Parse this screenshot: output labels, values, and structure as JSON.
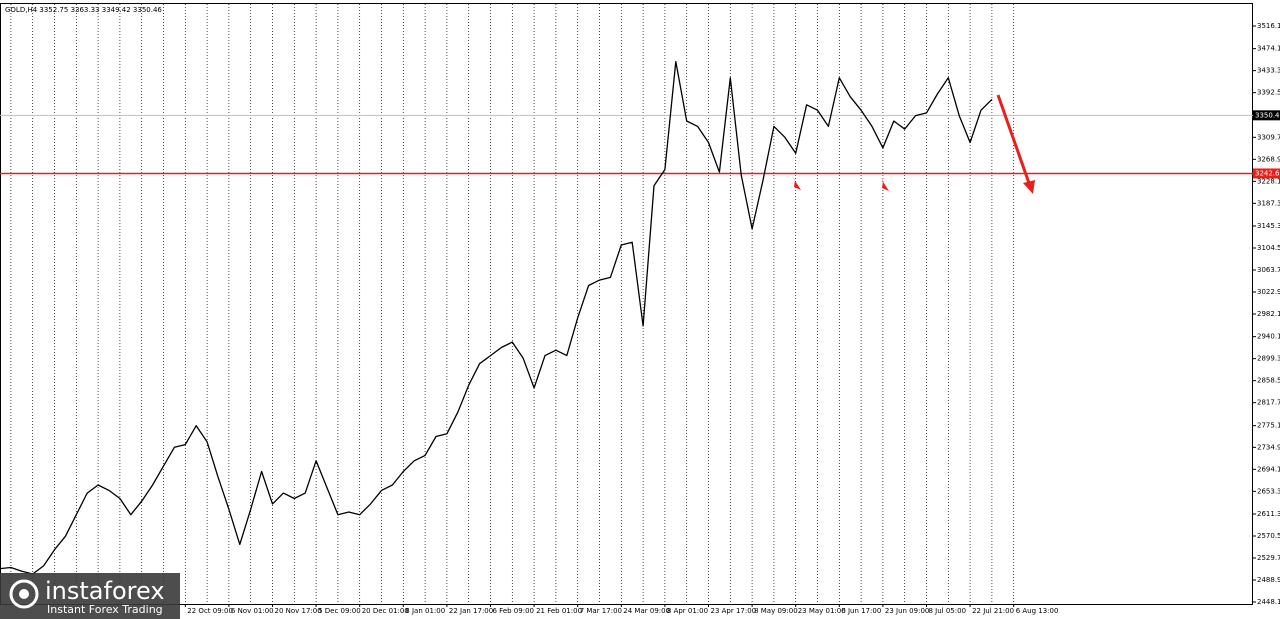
{
  "chart_data": {
    "type": "line",
    "title": "GOLD,H4  3352.75 3363.33 3349.42 3350.46",
    "categories": [
      null,
      null,
      null,
      null,
      null,
      null,
      null,
      null,
      null,
      null,
      null,
      null,
      null,
      null,
      null,
      null,
      null,
      "22 Oct 09:00",
      null,
      null,
      null,
      "6 Nov 01:00",
      null,
      null,
      null,
      "20 Nov 17:00",
      null,
      null,
      null,
      "5 Dec 09:00",
      null,
      null,
      null,
      "20 Dec 01:00",
      null,
      null,
      null,
      "8 Jan 01:00",
      null,
      null,
      null,
      "22 Jan 17:00",
      null,
      null,
      null,
      "6 Feb 09:00",
      null,
      null,
      null,
      "21 Feb 01:00",
      null,
      null,
      null,
      "7 Mar 17:00",
      null,
      null,
      null,
      "24 Mar 09:00",
      null,
      null,
      null,
      "8 Apr 01:00",
      null,
      null,
      null,
      "23 Apr 17:00",
      null,
      null,
      null,
      "8 May 09:00",
      null,
      null,
      null,
      "23 May 01:00",
      null,
      null,
      null,
      "6 Jun 17:00",
      null,
      null,
      null,
      "23 Jun 09:00",
      null,
      null,
      null,
      "8 Jul 05:00",
      null,
      null,
      null,
      "22 Jul 21:00",
      null,
      null,
      null,
      "6 Aug 13:00"
    ],
    "series": [
      {
        "name": "GOLD",
        "color": "#000000",
        "values": [
          2510,
          2512,
          2505,
          2500,
          2515,
          2545,
          2570,
          2610,
          2650,
          2665,
          2655,
          2640,
          2610,
          2635,
          2665,
          2700,
          2735,
          2740,
          2775,
          2745,
          2680,
          2620,
          2555,
          2620,
          2690,
          2630,
          2650,
          2640,
          2650,
          2710,
          2660,
          2610,
          2615,
          2610,
          2630,
          2655,
          2665,
          2690,
          2710,
          2720,
          2755,
          2760,
          2800,
          2850,
          2890,
          2905,
          2920,
          2930,
          2900,
          2845,
          2905,
          2915,
          2905,
          2975,
          3035,
          3045,
          3050,
          3110,
          3115,
          2960,
          3220,
          3250,
          3450,
          3340,
          3330,
          3300,
          3245,
          3420,
          3240,
          3140,
          3230,
          3330,
          3310,
          3280,
          3370,
          3360,
          3330,
          3420,
          3385,
          3360,
          3330,
          3290,
          3340,
          3325,
          3350,
          3355,
          3390,
          3420,
          3350,
          3300,
          3360,
          3380,
          null,
          null
        ]
      }
    ],
    "ylim": [
      2440.7,
      3564.3
    ],
    "yticks": [
      {
        "value": 3516.1,
        "label": "3516.10"
      },
      {
        "value": 3474.1,
        "label": "3474.10"
      },
      {
        "value": 3433.3,
        "label": "3433.30"
      },
      {
        "value": 3392.5,
        "label": "3392.50"
      },
      {
        "value": 3309.7,
        "label": "3309.70"
      },
      {
        "value": 3268.9,
        "label": "3268.90"
      },
      {
        "value": 3228.1,
        "label": "3228.10"
      },
      {
        "value": 3187.3,
        "label": "3187.30"
      },
      {
        "value": 3145.3,
        "label": "3145.30"
      },
      {
        "value": 3104.5,
        "label": "3104.50"
      },
      {
        "value": 3063.7,
        "label": "3063.70"
      },
      {
        "value": 3022.9,
        "label": "3022.90"
      },
      {
        "value": 2982.1,
        "label": "2982.10"
      },
      {
        "value": 2940.1,
        "label": "2940.10"
      },
      {
        "value": 2899.3,
        "label": "2899.30"
      },
      {
        "value": 2858.5,
        "label": "2858.50"
      },
      {
        "value": 2817.7,
        "label": "2817.70"
      },
      {
        "value": 2775.1,
        "label": "2775.10"
      },
      {
        "value": 2734.9,
        "label": "2734.90"
      },
      {
        "value": 2694.1,
        "label": "2694.10"
      },
      {
        "value": 2653.3,
        "label": "2653.30"
      },
      {
        "value": 2611.3,
        "label": "2611.30"
      },
      {
        "value": 2570.5,
        "label": "2570.50"
      },
      {
        "value": 2529.7,
        "label": "2529.70"
      },
      {
        "value": 2488.9,
        "label": "2488.90"
      },
      {
        "value": 2448.1,
        "label": "2448.10"
      }
    ],
    "price_line": {
      "value": 3350.46,
      "label": "3350.46"
    },
    "level": {
      "value": 3242.67,
      "label": "3242.67"
    },
    "grid": true
  },
  "logo": {
    "name": "instaforex",
    "tagline": "Instant Forex Trading"
  }
}
